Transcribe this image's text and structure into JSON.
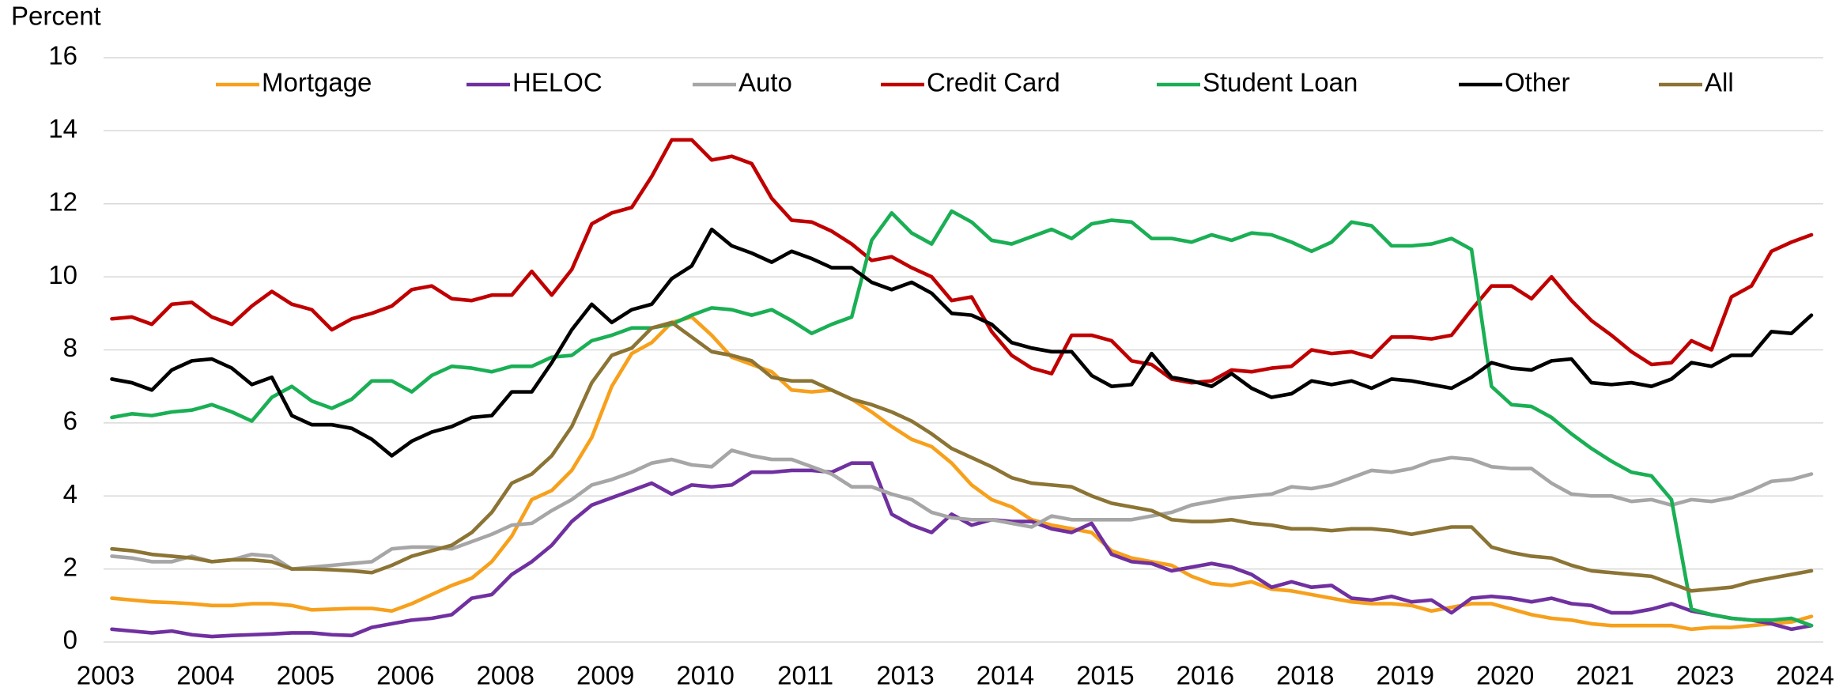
{
  "chart_data": {
    "type": "line",
    "y_label": "Percent",
    "categories": [
      "2003",
      null,
      null,
      null,
      null,
      "2004",
      null,
      null,
      null,
      null,
      "2005",
      null,
      null,
      null,
      null,
      "2006",
      null,
      null,
      null,
      null,
      "2008",
      null,
      null,
      null,
      null,
      "2009",
      null,
      null,
      null,
      null,
      "2010",
      null,
      null,
      null,
      null,
      "2011",
      null,
      null,
      null,
      null,
      "2013",
      null,
      null,
      null,
      null,
      "2014",
      null,
      null,
      null,
      null,
      "2015",
      null,
      null,
      null,
      null,
      "2016",
      null,
      null,
      null,
      null,
      "2018",
      null,
      null,
      null,
      null,
      "2019",
      null,
      null,
      null,
      null,
      "2020",
      null,
      null,
      null,
      null,
      "2021",
      null,
      null,
      null,
      null,
      "2023",
      null,
      null,
      null,
      null,
      "2024"
    ],
    "ylim": [
      0,
      16
    ],
    "yticks": [
      0,
      2,
      4,
      6,
      8,
      10,
      12,
      14,
      16
    ],
    "grid": true,
    "legend": "top",
    "series": [
      {
        "name": "Mortgage",
        "color": "#f7a01c",
        "values": [
          1.2,
          1.15,
          1.1,
          1.08,
          1.05,
          1.0,
          1.0,
          1.05,
          1.05,
          1.0,
          0.88,
          0.9,
          0.92,
          0.92,
          0.85,
          1.05,
          1.3,
          1.55,
          1.75,
          2.2,
          2.9,
          3.9,
          4.15,
          4.7,
          5.6,
          7.0,
          7.9,
          8.2,
          8.75,
          8.9,
          8.4,
          7.8,
          7.6,
          7.4,
          6.9,
          6.85,
          6.9,
          6.65,
          6.3,
          5.9,
          5.55,
          5.35,
          4.9,
          4.3,
          3.9,
          3.7,
          3.35,
          3.2,
          3.1,
          3.0,
          2.5,
          2.3,
          2.2,
          2.1,
          1.8,
          1.6,
          1.55,
          1.65,
          1.45,
          1.4,
          1.3,
          1.2,
          1.1,
          1.05,
          1.05,
          1.0,
          0.85,
          0.95,
          1.05,
          1.05,
          0.9,
          0.75,
          0.65,
          0.6,
          0.5,
          0.45,
          0.45,
          0.45,
          0.45,
          0.35,
          0.4,
          0.4,
          0.45,
          0.5,
          0.55,
          0.7
        ]
      },
      {
        "name": "HELOC",
        "color": "#7030a0",
        "values": [
          0.35,
          0.3,
          0.25,
          0.3,
          0.2,
          0.15,
          0.18,
          0.2,
          0.22,
          0.25,
          0.25,
          0.2,
          0.18,
          0.4,
          0.5,
          0.6,
          0.65,
          0.75,
          1.2,
          1.3,
          1.85,
          2.2,
          2.65,
          3.3,
          3.75,
          3.95,
          4.15,
          4.35,
          4.05,
          4.3,
          4.25,
          4.3,
          4.65,
          4.65,
          4.7,
          4.7,
          4.65,
          4.9,
          4.9,
          3.5,
          3.2,
          3.0,
          3.5,
          3.2,
          3.35,
          3.3,
          3.3,
          3.1,
          3.0,
          3.25,
          2.4,
          2.2,
          2.15,
          1.95,
          2.05,
          2.15,
          2.05,
          1.85,
          1.5,
          1.65,
          1.5,
          1.55,
          1.2,
          1.15,
          1.25,
          1.1,
          1.15,
          0.8,
          1.2,
          1.25,
          1.2,
          1.1,
          1.2,
          1.05,
          1.0,
          0.8,
          0.8,
          0.9,
          1.05,
          0.85,
          0.75,
          0.65,
          0.6,
          0.5,
          0.35,
          0.45
        ]
      },
      {
        "name": "Auto",
        "color": "#a6a6a6",
        "values": [
          2.35,
          2.3,
          2.2,
          2.2,
          2.35,
          2.2,
          2.25,
          2.4,
          2.35,
          2.0,
          2.05,
          2.1,
          2.15,
          2.2,
          2.55,
          2.6,
          2.6,
          2.55,
          2.75,
          2.95,
          3.2,
          3.25,
          3.6,
          3.9,
          4.3,
          4.45,
          4.65,
          4.9,
          5.0,
          4.85,
          4.8,
          5.25,
          5.1,
          5.0,
          5.0,
          4.8,
          4.6,
          4.25,
          4.25,
          4.05,
          3.9,
          3.55,
          3.4,
          3.35,
          3.35,
          3.25,
          3.15,
          3.45,
          3.35,
          3.35,
          3.35,
          3.35,
          3.45,
          3.55,
          3.75,
          3.85,
          3.95,
          4.0,
          4.05,
          4.25,
          4.2,
          4.3,
          4.5,
          4.7,
          4.65,
          4.75,
          4.95,
          5.05,
          5.0,
          4.8,
          4.75,
          4.75,
          4.35,
          4.05,
          4.0,
          4.0,
          3.85,
          3.9,
          3.75,
          3.9,
          3.85,
          3.95,
          4.15,
          4.4,
          4.45,
          4.6
        ]
      },
      {
        "name": "Credit Card",
        "color": "#c00000",
        "values": [
          8.85,
          8.9,
          8.7,
          9.25,
          9.3,
          8.9,
          8.7,
          9.2,
          9.6,
          9.25,
          9.1,
          8.55,
          8.85,
          9.0,
          9.2,
          9.65,
          9.75,
          9.4,
          9.35,
          9.5,
          9.5,
          10.15,
          9.5,
          10.2,
          11.45,
          11.75,
          11.9,
          12.75,
          13.75,
          13.75,
          13.2,
          13.3,
          13.1,
          12.15,
          11.55,
          11.5,
          11.25,
          10.9,
          10.45,
          10.55,
          10.25,
          10.0,
          9.35,
          9.45,
          8.5,
          7.85,
          7.5,
          7.35,
          8.4,
          8.4,
          8.25,
          7.7,
          7.6,
          7.2,
          7.1,
          7.15,
          7.45,
          7.4,
          7.5,
          7.55,
          8.0,
          7.9,
          7.95,
          7.8,
          8.35,
          8.35,
          8.3,
          8.4,
          9.1,
          9.75,
          9.75,
          9.4,
          10.0,
          9.35,
          8.8,
          8.4,
          7.95,
          7.6,
          7.65,
          8.25,
          8.0,
          9.45,
          9.75,
          10.7,
          10.95,
          11.15
        ]
      },
      {
        "name": "Student Loan",
        "color": "#1aaf54",
        "values": [
          6.15,
          6.25,
          6.2,
          6.3,
          6.35,
          6.5,
          6.3,
          6.05,
          6.7,
          7.0,
          6.6,
          6.4,
          6.65,
          7.15,
          7.15,
          6.85,
          7.3,
          7.55,
          7.5,
          7.4,
          7.55,
          7.55,
          7.8,
          7.85,
          8.25,
          8.4,
          8.6,
          8.6,
          8.7,
          8.95,
          9.15,
          9.1,
          8.95,
          9.1,
          8.8,
          8.45,
          8.7,
          8.9,
          11.0,
          11.75,
          11.2,
          10.9,
          11.8,
          11.5,
          11.0,
          10.9,
          11.1,
          11.3,
          11.05,
          11.45,
          11.55,
          11.5,
          11.05,
          11.05,
          10.95,
          11.15,
          11.0,
          11.2,
          11.15,
          10.95,
          10.7,
          10.95,
          11.5,
          11.4,
          10.85,
          10.85,
          10.9,
          11.05,
          10.75,
          7.0,
          6.5,
          6.45,
          6.15,
          5.7,
          5.3,
          4.95,
          4.65,
          4.55,
          3.9,
          0.9,
          0.75,
          0.65,
          0.6,
          0.6,
          0.65,
          0.45
        ]
      },
      {
        "name": "Other",
        "color": "#000000",
        "values": [
          7.2,
          7.1,
          6.9,
          7.45,
          7.7,
          7.75,
          7.5,
          7.05,
          7.25,
          6.2,
          5.95,
          5.95,
          5.85,
          5.55,
          5.1,
          5.5,
          5.75,
          5.9,
          6.15,
          6.2,
          6.85,
          6.85,
          7.65,
          8.55,
          9.25,
          8.75,
          9.1,
          9.25,
          9.95,
          10.3,
          11.3,
          10.85,
          10.65,
          10.4,
          10.7,
          10.5,
          10.25,
          10.25,
          9.85,
          9.65,
          9.85,
          9.55,
          9.0,
          8.95,
          8.7,
          8.2,
          8.05,
          7.95,
          7.95,
          7.3,
          7.0,
          7.05,
          7.9,
          7.25,
          7.15,
          7.0,
          7.35,
          6.95,
          6.7,
          6.8,
          7.15,
          7.05,
          7.15,
          6.95,
          7.2,
          7.15,
          7.05,
          6.95,
          7.25,
          7.65,
          7.5,
          7.45,
          7.7,
          7.75,
          7.1,
          7.05,
          7.1,
          7.0,
          7.2,
          7.65,
          7.55,
          7.85,
          7.85,
          8.5,
          8.45,
          8.95
        ]
      },
      {
        "name": "All",
        "color": "#8b7434",
        "values": [
          2.55,
          2.5,
          2.4,
          2.35,
          2.3,
          2.2,
          2.25,
          2.25,
          2.2,
          2.0,
          2.0,
          1.98,
          1.95,
          1.9,
          2.1,
          2.35,
          2.5,
          2.65,
          3.0,
          3.55,
          4.35,
          4.6,
          5.1,
          5.9,
          7.1,
          7.85,
          8.05,
          8.6,
          8.75,
          8.35,
          7.95,
          7.85,
          7.7,
          7.25,
          7.15,
          7.15,
          6.9,
          6.65,
          6.5,
          6.3,
          6.05,
          5.7,
          5.3,
          5.05,
          4.8,
          4.5,
          4.35,
          4.3,
          4.25,
          4.0,
          3.8,
          3.7,
          3.6,
          3.35,
          3.3,
          3.3,
          3.35,
          3.25,
          3.2,
          3.1,
          3.1,
          3.05,
          3.1,
          3.1,
          3.05,
          2.95,
          3.05,
          3.15,
          3.15,
          2.6,
          2.45,
          2.35,
          2.3,
          2.1,
          1.95,
          1.9,
          1.85,
          1.8,
          1.6,
          1.4,
          1.45,
          1.5,
          1.65,
          1.75,
          1.85,
          1.95
        ]
      }
    ]
  }
}
